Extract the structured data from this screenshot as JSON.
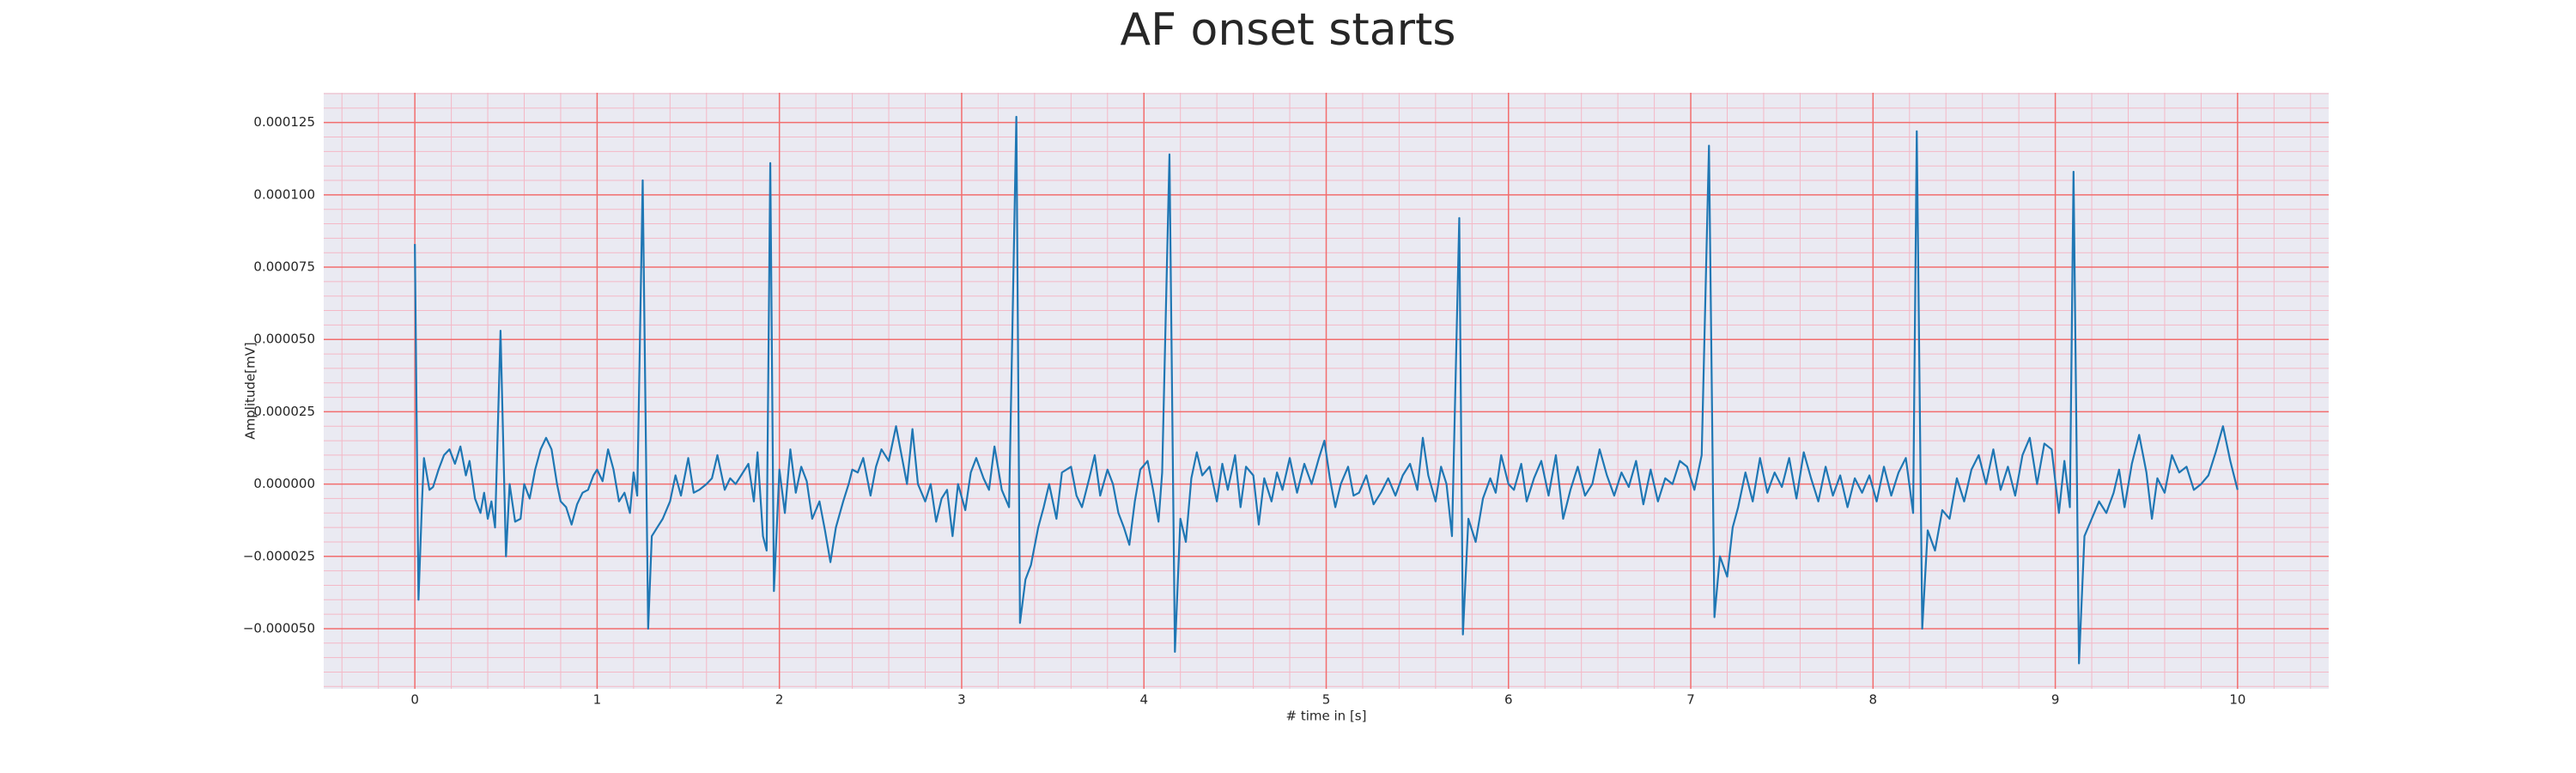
{
  "chart_data": {
    "type": "line",
    "title": "AF onset starts",
    "xlabel": "# time in [s]",
    "ylabel": "Amplitude[mV]",
    "xlim": [
      -0.5,
      10.5
    ],
    "ylim": [
      -7.08e-05,
      0.0001353
    ],
    "xticks": [
      0,
      1,
      2,
      3,
      4,
      5,
      6,
      7,
      8,
      9,
      10
    ],
    "yticks": [
      {
        "value": -5e-05,
        "label": "−0.000050"
      },
      {
        "value": -2.5e-05,
        "label": "−0.000025"
      },
      {
        "value": 0,
        "label": "0.000000"
      },
      {
        "value": 2.5e-05,
        "label": "0.000025"
      },
      {
        "value": 5e-05,
        "label": "0.000050"
      },
      {
        "value": 7.5e-05,
        "label": "0.000075"
      },
      {
        "value": 0.0001,
        "label": "0.000100"
      },
      {
        "value": 0.000125,
        "label": "0.000125"
      }
    ],
    "xminorticks": [
      -0.4,
      -0.2,
      0.2,
      0.4,
      0.6,
      0.8,
      1.2,
      1.4,
      1.6,
      1.8,
      2.2,
      2.4,
      2.6,
      2.8,
      3.2,
      3.4,
      3.6,
      3.8,
      4.2,
      4.4,
      4.6,
      4.8,
      5.2,
      5.4,
      5.6,
      5.8,
      6.2,
      6.4,
      6.6,
      6.8,
      7.2,
      7.4,
      7.6,
      7.8,
      8.2,
      8.4,
      8.6,
      8.8,
      9.2,
      9.4,
      9.6,
      9.8,
      10.2,
      10.4
    ],
    "yminorticks": [
      -7e-05,
      -6.5e-05,
      -6e-05,
      -5.5e-05,
      -4.5e-05,
      -4e-05,
      -3.5e-05,
      -3e-05,
      -2e-05,
      -1.5e-05,
      -1e-05,
      -5e-06,
      5e-06,
      1e-05,
      1.5e-05,
      2e-05,
      3e-05,
      3.5e-05,
      4e-05,
      4.5e-05,
      5.5e-05,
      6e-05,
      6.5e-05,
      7e-05,
      8e-05,
      8.5e-05,
      9e-05,
      9.5e-05,
      0.000105,
      0.00011,
      0.000115,
      0.00012,
      0.00013,
      0.000135
    ],
    "grid": true,
    "background": "#eaeaf2",
    "grid_color": "#f26d6d",
    "minor_grid_color": "#f4b8c6",
    "x": [
      0,
      0.02,
      0.04,
      0.05,
      0.08,
      0.1,
      0.13,
      0.16,
      0.19,
      0.22,
      0.25,
      0.28,
      0.3,
      0.33,
      0.36,
      0.38,
      0.4,
      0.42,
      0.44,
      0.47,
      0.5,
      0.52,
      0.55,
      0.58,
      0.6,
      0.63,
      0.66,
      0.69,
      0.72,
      0.75,
      0.78,
      0.8,
      0.83,
      0.86,
      0.89,
      0.92,
      0.95,
      0.98,
      1.0,
      1.03,
      1.06,
      1.09,
      1.12,
      1.15,
      1.18,
      1.2,
      1.22,
      1.25,
      1.28,
      1.3,
      1.33,
      1.36,
      1.4,
      1.43,
      1.46,
      1.5,
      1.53,
      1.56,
      1.6,
      1.63,
      1.66,
      1.7,
      1.73,
      1.76,
      1.8,
      1.83,
      1.86,
      1.88,
      1.91,
      1.93,
      1.95,
      1.97,
      2.0,
      2.03,
      2.06,
      2.09,
      2.12,
      2.15,
      2.18,
      2.22,
      2.25,
      2.28,
      2.31,
      2.35,
      2.38,
      2.4,
      2.43,
      2.46,
      2.5,
      2.53,
      2.56,
      2.6,
      2.64,
      2.67,
      2.7,
      2.73,
      2.76,
      2.8,
      2.83,
      2.86,
      2.89,
      2.92,
      2.95,
      2.98,
      3.02,
      3.05,
      3.08,
      3.12,
      3.15,
      3.18,
      3.22,
      3.26,
      3.3,
      3.32,
      3.35,
      3.38,
      3.42,
      3.45,
      3.48,
      3.52,
      3.55,
      3.6,
      3.63,
      3.66,
      3.7,
      3.73,
      3.76,
      3.8,
      3.83,
      3.86,
      3.89,
      3.92,
      3.95,
      3.98,
      4.02,
      4.05,
      4.08,
      4.1,
      4.14,
      4.17,
      4.2,
      4.23,
      4.26,
      4.29,
      4.32,
      4.36,
      4.4,
      4.43,
      4.46,
      4.5,
      4.53,
      4.56,
      4.6,
      4.63,
      4.66,
      4.7,
      4.73,
      4.76,
      4.8,
      4.84,
      4.88,
      4.92,
      4.96,
      4.99,
      5.02,
      5.05,
      5.08,
      5.12,
      5.15,
      5.18,
      5.22,
      5.26,
      5.3,
      5.34,
      5.38,
      5.42,
      5.46,
      5.5,
      5.53,
      5.56,
      5.6,
      5.63,
      5.66,
      5.69,
      5.73,
      5.75,
      5.78,
      5.82,
      5.86,
      5.9,
      5.93,
      5.96,
      6.0,
      6.03,
      6.07,
      6.1,
      6.14,
      6.18,
      6.22,
      6.26,
      6.3,
      6.34,
      6.38,
      6.42,
      6.46,
      6.5,
      6.54,
      6.58,
      6.62,
      6.66,
      6.7,
      6.74,
      6.78,
      6.82,
      6.86,
      6.9,
      6.94,
      6.98,
      7.02,
      7.06,
      7.1,
      7.13,
      7.16,
      7.2,
      7.23,
      7.26,
      7.3,
      7.34,
      7.38,
      7.42,
      7.46,
      7.5,
      7.54,
      7.58,
      7.62,
      7.66,
      7.7,
      7.74,
      7.78,
      7.82,
      7.86,
      7.9,
      7.94,
      7.98,
      8.02,
      8.06,
      8.1,
      8.14,
      8.18,
      8.22,
      8.24,
      8.27,
      8.3,
      8.34,
      8.38,
      8.42,
      8.46,
      8.5,
      8.54,
      8.58,
      8.62,
      8.66,
      8.7,
      8.74,
      8.78,
      8.82,
      8.86,
      8.9,
      8.94,
      8.98,
      9.02,
      9.05,
      9.08,
      9.1,
      9.13,
      9.16,
      9.2,
      9.24,
      9.28,
      9.32,
      9.35,
      9.38,
      9.42,
      9.46,
      9.5,
      9.53,
      9.56,
      9.6,
      9.64,
      9.68,
      9.72,
      9.76,
      9.8,
      9.84,
      9.88,
      9.92,
      9.96,
      10.0
    ],
    "series": [
      {
        "color": "#1f77b4",
        "values": [
          8.3e-05,
          -4e-05,
          -5e-06,
          9e-06,
          -2e-06,
          -1e-06,
          5e-06,
          1e-05,
          1.2e-05,
          7e-06,
          1.3e-05,
          3e-06,
          8e-06,
          -5e-06,
          -1e-05,
          -3e-06,
          -1.2e-05,
          -6e-06,
          -1.5e-05,
          5.3e-05,
          -2.5e-05,
          0,
          -1.3e-05,
          -1.2e-05,
          0,
          -5e-06,
          5e-06,
          1.2e-05,
          1.6e-05,
          1.2e-05,
          0,
          -6e-06,
          -8e-06,
          -1.4e-05,
          -7e-06,
          -3e-06,
          -2e-06,
          3e-06,
          5e-06,
          1e-06,
          1.2e-05,
          5e-06,
          -6e-06,
          -3e-06,
          -1e-05,
          4e-06,
          -4e-06,
          0.000105,
          -5e-05,
          -1.8e-05,
          -1.5e-05,
          -1.2e-05,
          -6e-06,
          3e-06,
          -4e-06,
          9e-06,
          -3e-06,
          -2e-06,
          0,
          2e-06,
          1e-05,
          -2e-06,
          2e-06,
          0,
          4e-06,
          7e-06,
          -6e-06,
          1.1e-05,
          -1.8e-05,
          -2.3e-05,
          0.000111,
          -3.7e-05,
          5e-06,
          -1e-05,
          1.2e-05,
          -3e-06,
          6e-06,
          1e-06,
          -1.2e-05,
          -6e-06,
          -1.6e-05,
          -2.7e-05,
          -1.5e-05,
          -6e-06,
          0,
          5e-06,
          4e-06,
          9e-06,
          -4e-06,
          6e-06,
          1.2e-05,
          8e-06,
          2e-05,
          1e-05,
          0,
          1.9e-05,
          0,
          -6e-06,
          0,
          -1.3e-05,
          -5e-06,
          -2e-06,
          -1.8e-05,
          0,
          -9e-06,
          4e-06,
          9e-06,
          2e-06,
          -2e-06,
          1.3e-05,
          -2e-06,
          -8e-06,
          0.000127,
          -4.8e-05,
          -3.3e-05,
          -2.8e-05,
          -1.5e-05,
          -8e-06,
          0,
          -1.2e-05,
          4e-06,
          6e-06,
          -4e-06,
          -8e-06,
          2e-06,
          1e-05,
          -4e-06,
          5e-06,
          0,
          -1e-05,
          -1.5e-05,
          -2.1e-05,
          -6e-06,
          5e-06,
          8e-06,
          -2e-06,
          -1.3e-05,
          4e-06,
          0.000114,
          -5.8e-05,
          -1.2e-05,
          -2e-05,
          2e-06,
          1.1e-05,
          3e-06,
          6e-06,
          -6e-06,
          7e-06,
          -2e-06,
          1e-05,
          -8e-06,
          6e-06,
          3e-06,
          -1.4e-05,
          2e-06,
          -6e-06,
          4e-06,
          -2e-06,
          9e-06,
          -3e-06,
          7e-06,
          0,
          9e-06,
          1.5e-05,
          2e-06,
          -8e-06,
          0,
          6e-06,
          -4e-06,
          -3e-06,
          3e-06,
          -7e-06,
          -3e-06,
          2e-06,
          -4e-06,
          3e-06,
          7e-06,
          -2e-06,
          1.6e-05,
          3e-06,
          -6e-06,
          6e-06,
          0,
          -1.8e-05,
          9.2e-05,
          -5.2e-05,
          -1.2e-05,
          -2e-05,
          -5e-06,
          2e-06,
          -3e-06,
          1e-05,
          0,
          -2e-06,
          7e-06,
          -6e-06,
          2e-06,
          8e-06,
          -4e-06,
          1e-05,
          -1.2e-05,
          -2e-06,
          6e-06,
          -4e-06,
          0,
          1.2e-05,
          3e-06,
          -4e-06,
          4e-06,
          -1e-06,
          8e-06,
          -7e-06,
          5e-06,
          -6e-06,
          2e-06,
          0,
          8e-06,
          6e-06,
          -2e-06,
          1e-05,
          0.000117,
          -4.6e-05,
          -2.5e-05,
          -3.2e-05,
          -1.5e-05,
          -8e-06,
          4e-06,
          -6e-06,
          9e-06,
          -3e-06,
          4e-06,
          -1e-06,
          9e-06,
          -5e-06,
          1.1e-05,
          2e-06,
          -6e-06,
          6e-06,
          -4e-06,
          3e-06,
          -8e-06,
          2e-06,
          -3e-06,
          3e-06,
          -6e-06,
          6e-06,
          -4e-06,
          4e-06,
          9e-06,
          -1e-05,
          0.000122,
          -5e-05,
          -1.6e-05,
          -2.3e-05,
          -9e-06,
          -1.2e-05,
          2e-06,
          -6e-06,
          5e-06,
          1e-05,
          0,
          1.2e-05,
          -2e-06,
          6e-06,
          -4e-06,
          1e-05,
          1.6e-05,
          0,
          1.4e-05,
          1.2e-05,
          -1e-05,
          8e-06,
          -8e-06,
          0.000108,
          -6.2e-05,
          -1.8e-05,
          -1.2e-05,
          -6e-06,
          -1e-05,
          -3e-06,
          5e-06,
          -8e-06,
          7e-06,
          1.7e-05,
          4e-06,
          -1.2e-05,
          2e-06,
          -3e-06,
          1e-05,
          4e-06,
          6e-06,
          -2e-06,
          0,
          3e-06,
          1.1e-05,
          2e-05,
          8e-06,
          -2e-06
        ]
      }
    ]
  }
}
